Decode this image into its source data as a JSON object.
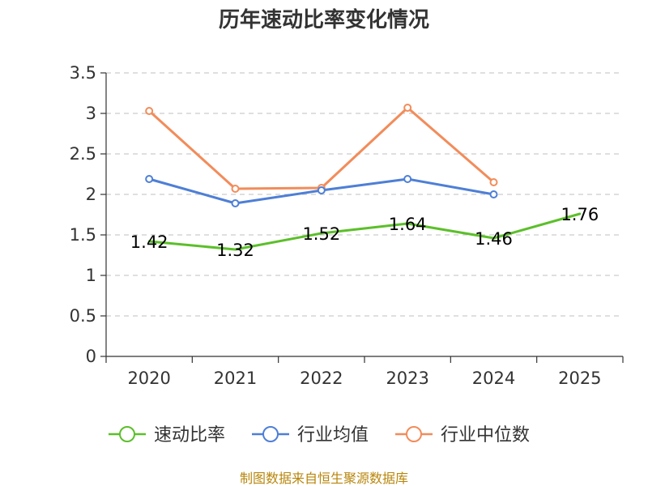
{
  "chart_data": {
    "type": "line",
    "title": "历年速动比率变化情况",
    "categories": [
      "2020",
      "2021",
      "2022",
      "2023",
      "2024",
      "2025"
    ],
    "ylim": [
      0,
      3.5
    ],
    "yticks": [
      0,
      0.5,
      1,
      1.5,
      2,
      2.5,
      3,
      3.5
    ],
    "ytick_labels": [
      "0",
      "0.5",
      "1",
      "1.5",
      "2",
      "2.5",
      "3",
      "3.5"
    ],
    "grid": true,
    "legend_position": "bottom",
    "series": [
      {
        "name": "速动比率",
        "color": "#5cbf2a",
        "values": [
          1.42,
          1.32,
          1.52,
          1.64,
          1.46,
          1.76
        ],
        "data_labels": [
          "1.42",
          "1.32",
          "1.52",
          "1.64",
          "1.46",
          "1.76"
        ],
        "show_markers": false
      },
      {
        "name": "行业均值",
        "color": "#4e7fd6",
        "values": [
          2.19,
          1.89,
          2.05,
          2.19,
          2.0,
          null
        ],
        "show_markers": true
      },
      {
        "name": "行业中位数",
        "color": "#f28c5a",
        "values": [
          3.03,
          2.07,
          2.08,
          3.07,
          2.15,
          null
        ],
        "show_markers": true
      }
    ],
    "source": "制图数据来自恒生聚源数据库"
  }
}
